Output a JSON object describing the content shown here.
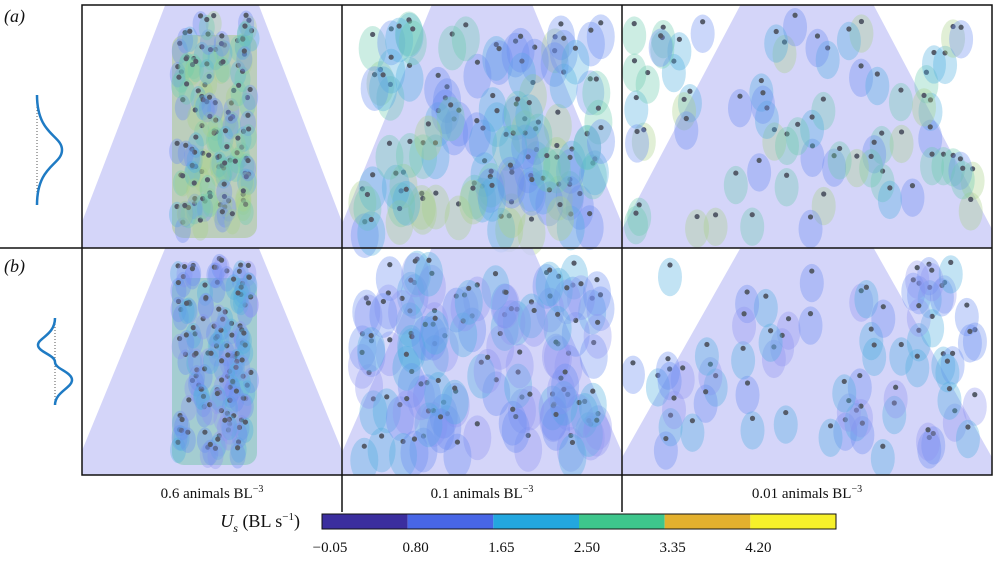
{
  "panels": [
    {
      "label": "(a)"
    },
    {
      "label": "(b)"
    }
  ],
  "columns": [
    {
      "text": "0.6 animals BL",
      "sup": "−3"
    },
    {
      "text": "0.1 animals BL",
      "sup": "−3"
    },
    {
      "text": "0.01 animals BL",
      "sup": "−3"
    }
  ],
  "colorbar": {
    "label": {
      "symbol": "U",
      "sub": "s",
      "unit": " (BL s",
      "sup": "−1",
      "close": ")"
    },
    "colors": [
      "#3b2e9e",
      "#4866e6",
      "#23a7df",
      "#3ec68c",
      "#e3b02e",
      "#f6f02a"
    ],
    "ticks": [
      "−0.05",
      "0.80",
      "1.65",
      "2.50",
      "3.35",
      "4.20"
    ]
  }
}
